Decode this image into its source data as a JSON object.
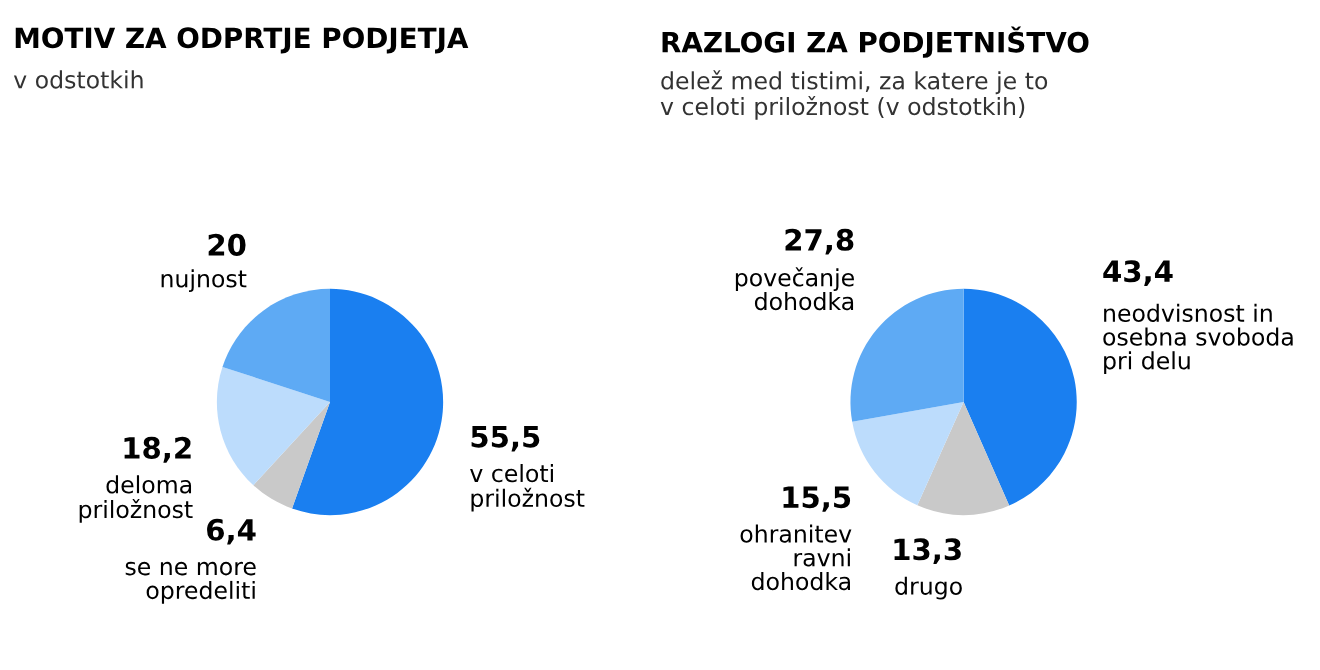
{
  "chart_data": [
    {
      "type": "pie",
      "title": "MOTIV ZA ODPRTJE PODJETJA",
      "subtitle": "v odstotkih",
      "categories": [
        "v celoti\npriložnost",
        "se ne more\nopredeliti",
        "deloma\npriložnost",
        "nujnost"
      ],
      "values": [
        55.5,
        6.4,
        18.2,
        20
      ],
      "value_labels": [
        "55,5",
        "6,4",
        "18,2",
        "20"
      ],
      "colors": [
        "#1a7ff0",
        "#c9c9c9",
        "#bcdcfc",
        "#5eaaf4"
      ]
    },
    {
      "type": "pie",
      "title": "RAZLOGI ZA PODJETNIŠTVO",
      "subtitle": "delež med tistimi, za katere je to\nv celoti priložnost (v odstotkih)",
      "categories": [
        "neodvisnost in\nosebna svoboda\npri delu",
        "drugo",
        "ohranitev\nravni\ndohodka",
        "povečanje\ndohodka"
      ],
      "values": [
        43.4,
        13.3,
        15.5,
        27.8
      ],
      "value_labels": [
        "43,4",
        "13,3",
        "15,5",
        "27,8"
      ],
      "colors": [
        "#1a7ff0",
        "#c9c9c9",
        "#bcdcfc",
        "#5eaaf4"
      ]
    }
  ]
}
